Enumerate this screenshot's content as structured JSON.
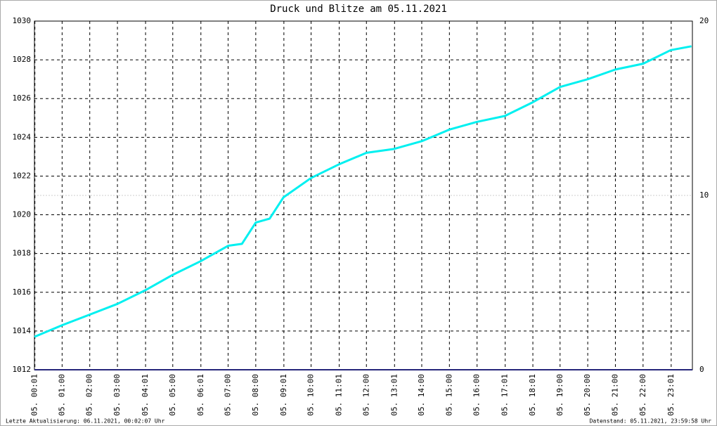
{
  "chart_data": {
    "type": "line",
    "title_connector": "und",
    "title_tail": "am 05.11.2021",
    "xlim": [
      0,
      1427
    ],
    "xticks": [
      {
        "value": 1,
        "label": "05. 00:01"
      },
      {
        "value": 60,
        "label": "05. 01:00"
      },
      {
        "value": 120,
        "label": "05. 02:00"
      },
      {
        "value": 180,
        "label": "05. 03:00"
      },
      {
        "value": 241,
        "label": "05. 04:01"
      },
      {
        "value": 300,
        "label": "05. 05:00"
      },
      {
        "value": 361,
        "label": "05. 06:01"
      },
      {
        "value": 420,
        "label": "05. 07:00"
      },
      {
        "value": 480,
        "label": "05. 08:00"
      },
      {
        "value": 541,
        "label": "05. 09:01"
      },
      {
        "value": 600,
        "label": "05. 10:00"
      },
      {
        "value": 661,
        "label": "05. 11:01"
      },
      {
        "value": 720,
        "label": "05. 12:00"
      },
      {
        "value": 781,
        "label": "05. 13:01"
      },
      {
        "value": 840,
        "label": "05. 14:00"
      },
      {
        "value": 900,
        "label": "05. 15:00"
      },
      {
        "value": 960,
        "label": "05. 16:00"
      },
      {
        "value": 1021,
        "label": "05. 17:01"
      },
      {
        "value": 1081,
        "label": "05. 18:01"
      },
      {
        "value": 1140,
        "label": "05. 19:00"
      },
      {
        "value": 1200,
        "label": "05. 20:00"
      },
      {
        "value": 1260,
        "label": "05. 21:00"
      },
      {
        "value": 1320,
        "label": "05. 22:00"
      },
      {
        "value": 1381,
        "label": "05. 23:01"
      }
    ],
    "ylim": [
      1012,
      1030
    ],
    "yticks": [
      1012,
      1014,
      1016,
      1018,
      1020,
      1022,
      1024,
      1026,
      1028,
      1030
    ],
    "y2lim": [
      0,
      20
    ],
    "y2ticks": [
      0,
      10,
      20
    ],
    "grid": true,
    "series": [
      {
        "name": "Druck",
        "color": "#00f0f0",
        "x": [
          0,
          60,
          120,
          180,
          240,
          300,
          360,
          420,
          450,
          480,
          510,
          540,
          600,
          660,
          720,
          780,
          840,
          900,
          960,
          1020,
          1080,
          1140,
          1200,
          1260,
          1320,
          1380,
          1425
        ],
        "values": [
          1013.7,
          1014.3,
          1014.85,
          1015.4,
          1016.1,
          1016.9,
          1017.6,
          1018.4,
          1018.5,
          1019.6,
          1019.8,
          1020.9,
          1021.9,
          1022.6,
          1023.2,
          1023.4,
          1023.8,
          1024.4,
          1024.8,
          1025.1,
          1025.8,
          1026.6,
          1027.0,
          1027.5,
          1027.8,
          1028.5,
          1028.7
        ]
      },
      {
        "name": "Blitze",
        "color": "#26267a",
        "axis": "y2",
        "x": [
          0,
          1427
        ],
        "values": [
          0,
          0
        ]
      }
    ]
  },
  "footer": {
    "left": "Letzte Aktualisierung: 06.11.2021, 00:02:07 Uhr",
    "right": "Datenstand: 05.11.2021, 23:59:58 Uhr"
  }
}
